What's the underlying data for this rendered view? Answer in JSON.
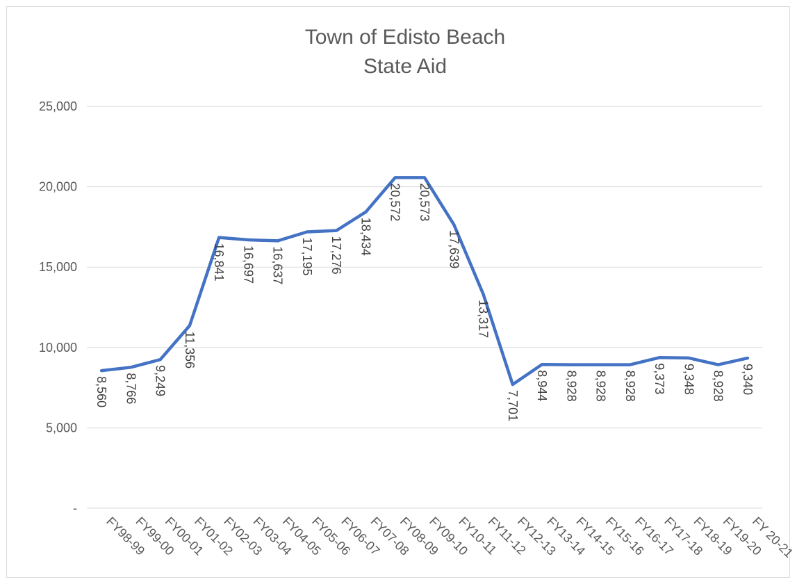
{
  "chart_data": {
    "type": "line",
    "title": "Town of Edisto Beach",
    "subtitle": "State Aid",
    "xlabel": "",
    "ylabel": "",
    "categories": [
      "FY98-99",
      "FY99-00",
      "FY00-01",
      "FY01-02",
      "FY02-03",
      "FY03-04",
      "FY04-05",
      "FY05-06",
      "FY06-07",
      "FY07-08",
      "FY08-09",
      "FY09-10",
      "FY10-11",
      "FY11-12",
      "FY12-13",
      "FY13-14",
      "FY14-15",
      "FY15-16",
      "FY16-17",
      "FY17-18",
      "FY18-19",
      "FY19-20",
      "FY 20-21"
    ],
    "series": [
      {
        "values": [
          8560,
          8766,
          9249,
          11356,
          16841,
          16697,
          16637,
          17195,
          17276,
          18434,
          20572,
          20573,
          17639,
          13317,
          7701,
          8944,
          8928,
          8928,
          8928,
          9373,
          9348,
          8928,
          9340
        ],
        "labels": [
          "8,560",
          "8,766",
          "9,249",
          "11,356",
          "16,841",
          "16,697",
          "16,637",
          "17,195",
          "17,276",
          "18,434",
          "20,572",
          "20,573",
          "17,639",
          "13,317",
          "7,701",
          "8,944",
          "8,928",
          "8,928",
          "8,928",
          "9,373",
          "9,348",
          "8,928",
          "9,340"
        ],
        "color": "#4472c4"
      }
    ],
    "ylim": [
      0,
      25000
    ],
    "yticks": [
      0,
      5000,
      10000,
      15000,
      20000,
      25000
    ],
    "ytick_labels": [
      "-",
      "5,000",
      "10,000",
      "15,000",
      "20,000",
      "25,000"
    ],
    "grid": true,
    "gridline_color": "#d9d9d9",
    "legend": "none"
  }
}
